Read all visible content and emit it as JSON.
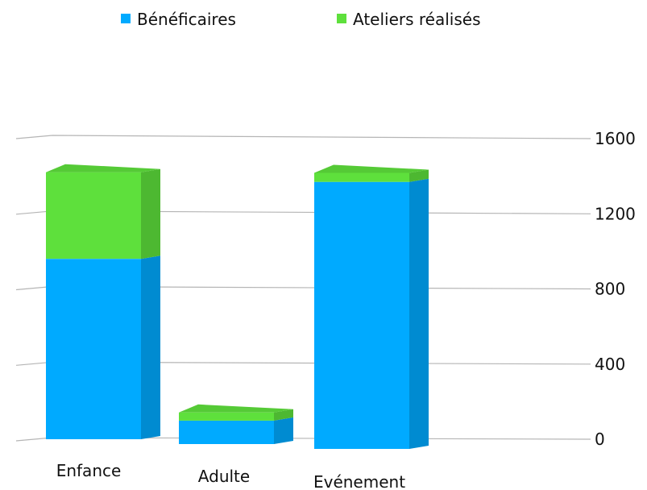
{
  "chart_data": {
    "type": "bar",
    "stacked": true,
    "categories": [
      "Enfance",
      "Adulte",
      "Evénement"
    ],
    "series": [
      {
        "name": "Bénéficaires",
        "values": [
          1000,
          130,
          1480
        ],
        "color": "#00aaff"
      },
      {
        "name": "Ateliers réalisés",
        "values": [
          480,
          45,
          50
        ],
        "color": "#5ee03c"
      }
    ],
    "ylim": [
      0,
      1600
    ],
    "yticks": [
      0,
      400,
      800,
      1200,
      1600
    ],
    "grid": true,
    "legend": "top",
    "title": "",
    "xlabel": "",
    "ylabel": ""
  }
}
